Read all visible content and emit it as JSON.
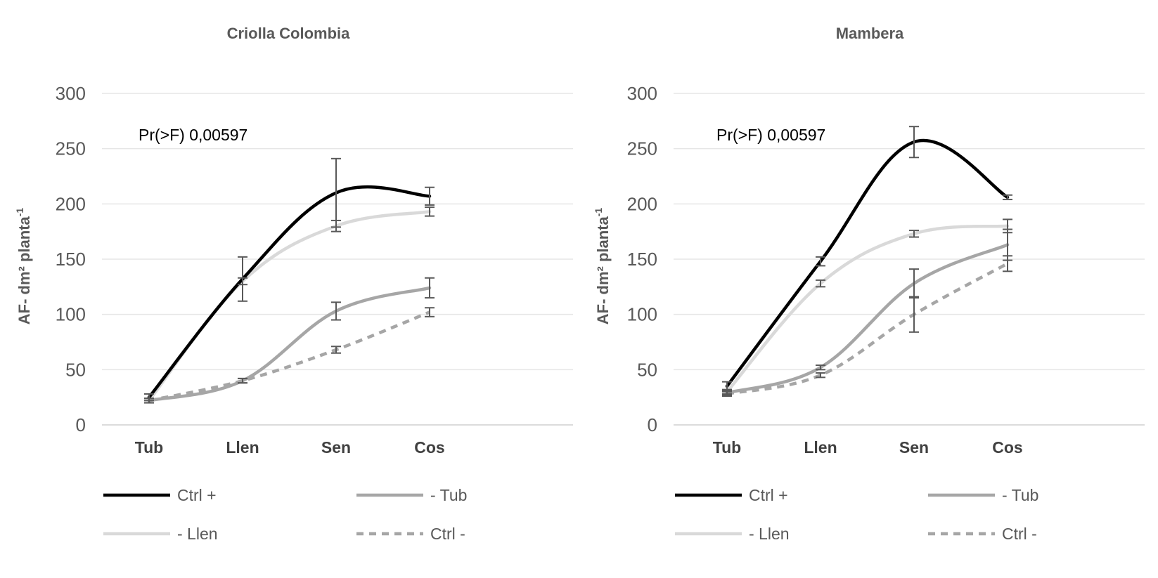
{
  "chart_data": [
    {
      "type": "line",
      "title": "Criolla Colombia",
      "ylabel": "AF- dm² planta",
      "ylabel_sup": "-1",
      "annotation": "Pr(>F) 0,00597",
      "categories": [
        "Tub",
        "Llen",
        "Sen",
        "Cos"
      ],
      "ylim": [
        0,
        300
      ],
      "yticks": [
        0,
        50,
        100,
        150,
        200,
        250,
        300
      ],
      "grid": true,
      "legend_position": "bottom",
      "series": [
        {
          "name": "Ctrl +",
          "color": "#000000",
          "dash": "none",
          "values": [
            25,
            132,
            210,
            207
          ],
          "errors": [
            3,
            20,
            31,
            8
          ]
        },
        {
          "name": "- Tub",
          "color": "#a6a6a6",
          "dash": "none",
          "values": [
            22,
            40,
            103,
            124
          ],
          "errors": [
            2,
            2,
            8,
            9
          ]
        },
        {
          "name": "- Llen",
          "color": "#d9d9d9",
          "dash": "none",
          "values": [
            22,
            130,
            180,
            193
          ],
          "errors": [
            2,
            3,
            5,
            4
          ]
        },
        {
          "name": "Ctrl -",
          "color": "#a6a6a6",
          "dash": "10,8",
          "values": [
            22,
            40,
            68,
            102
          ],
          "errors": [
            2,
            2,
            3,
            4
          ]
        }
      ]
    },
    {
      "type": "line",
      "title": "Mambera",
      "ylabel": "AF- dm² planta",
      "ylabel_sup": "-1",
      "annotation": "Pr(>F) 0,00597",
      "categories": [
        "Tub",
        "Llen",
        "Sen",
        "Cos"
      ],
      "ylim": [
        0,
        300
      ],
      "yticks": [
        0,
        50,
        100,
        150,
        200,
        250,
        300
      ],
      "grid": true,
      "legend_position": "bottom",
      "series": [
        {
          "name": "Ctrl +",
          "color": "#000000",
          "dash": "none",
          "values": [
            35,
            148,
            256,
            206
          ],
          "errors": [
            4,
            4,
            14,
            2
          ]
        },
        {
          "name": "- Tub",
          "color": "#a6a6a6",
          "dash": "none",
          "values": [
            29,
            52,
            128,
            163
          ],
          "errors": [
            2,
            2,
            13,
            14
          ]
        },
        {
          "name": "- Llen",
          "color": "#d9d9d9",
          "dash": "none",
          "values": [
            30,
            128,
            173,
            180
          ],
          "errors": [
            2,
            3,
            3,
            6
          ]
        },
        {
          "name": "Ctrl -",
          "color": "#a6a6a6",
          "dash": "10,8",
          "values": [
            28,
            45,
            100,
            146
          ],
          "errors": [
            2,
            2,
            16,
            7
          ]
        }
      ]
    }
  ]
}
